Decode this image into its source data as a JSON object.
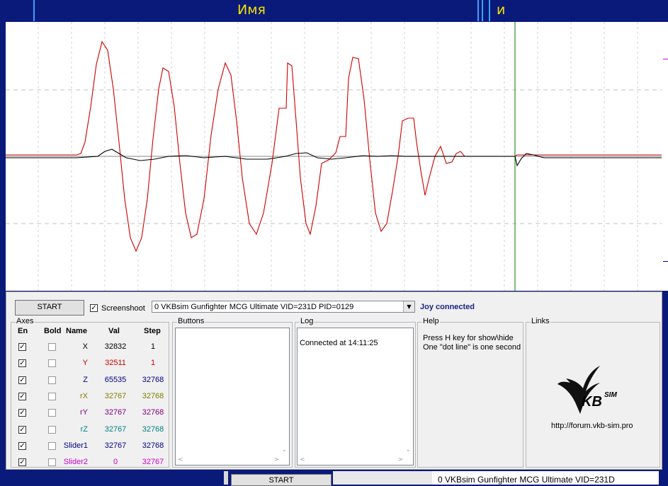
{
  "header": {
    "title": "Имя",
    "title2": "и"
  },
  "chart_data": {
    "type": "line",
    "series": [
      {
        "color": "#cc0000"
      },
      {
        "color": "#000000"
      }
    ]
  },
  "toolbar": {
    "start_label": "START",
    "screenshot_label": "Screenshoot",
    "device_value": "0  VKBsim Gunfighter MCG Ultimate  VID=231D PID=0129",
    "status": "Joy connected"
  },
  "axes": {
    "title": "Axes",
    "headers": {
      "en": "En",
      "bold": "Bold",
      "name": "Name",
      "val": "Val",
      "step": "Step"
    },
    "rows": [
      {
        "name": "X",
        "val": "32832",
        "step": "1",
        "color": "#000000"
      },
      {
        "name": "Y",
        "val": "32511",
        "step": "1",
        "color": "#cc0000"
      },
      {
        "name": "Z",
        "val": "65535",
        "step": "32768",
        "color": "#000080"
      },
      {
        "name": "rX",
        "val": "32767",
        "step": "32768",
        "color": "#808000"
      },
      {
        "name": "rY",
        "val": "32767",
        "step": "32768",
        "color": "#800080"
      },
      {
        "name": "rZ",
        "val": "32767",
        "step": "32768",
        "color": "#008080"
      },
      {
        "name": "Slider1",
        "val": "32767",
        "step": "32768",
        "color": "#000080"
      },
      {
        "name": "Slider2",
        "val": "0",
        "step": "32767",
        "color": "#cc00cc"
      }
    ]
  },
  "buttons_group": {
    "title": "Buttons"
  },
  "log": {
    "title": "Log",
    "line1": "Connected at 14:11:25"
  },
  "help": {
    "title": "Help",
    "line1": "Press H key for show\\hide",
    "line2": "One \"dot line\" is one second"
  },
  "links": {
    "title": "Links",
    "logo_text": "KB",
    "logo_sup": "SIM",
    "url": "http://forum.vkb-sim.pro"
  },
  "bottom": {
    "start_label": "START",
    "device_value": "0  VKBsim Gunfighter MCG Ultimate  VID=231D"
  }
}
